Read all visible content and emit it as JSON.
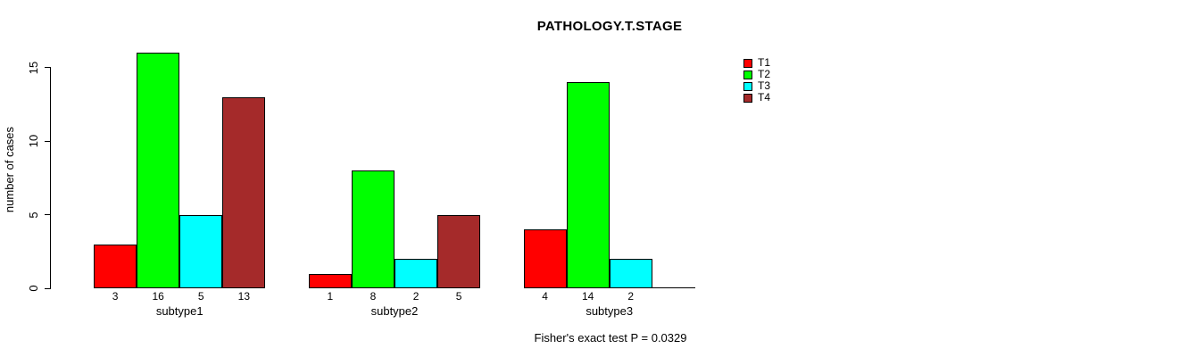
{
  "chart_data": {
    "type": "bar",
    "title": "PATHOLOGY.T.STAGE",
    "xlabel": "",
    "ylabel": "number of cases",
    "annotation": "Fisher's exact test P = 0.0329",
    "categories": [
      "subtype1",
      "subtype2",
      "subtype3"
    ],
    "series": [
      {
        "name": "T1",
        "color": "#ff0000",
        "values": [
          3,
          1,
          4
        ]
      },
      {
        "name": "T2",
        "color": "#00ff00",
        "values": [
          16,
          8,
          14
        ]
      },
      {
        "name": "T3",
        "color": "#00ffff",
        "values": [
          5,
          2,
          2
        ]
      },
      {
        "name": "T4",
        "color": "#a52a2a",
        "values": [
          13,
          5,
          0
        ]
      }
    ],
    "bar_value_labels": {
      "subtype1": [
        3,
        16,
        5,
        13
      ],
      "subtype2": [
        1,
        8,
        2,
        5
      ],
      "subtype3": [
        4,
        14,
        2,
        0
      ]
    },
    "yticks": [
      0,
      5,
      10,
      15
    ],
    "ylim": [
      0,
      16
    ],
    "grid": false,
    "legend_position": "right-outside",
    "bar_border_color": "#000000",
    "background_color": "#ffffff"
  }
}
